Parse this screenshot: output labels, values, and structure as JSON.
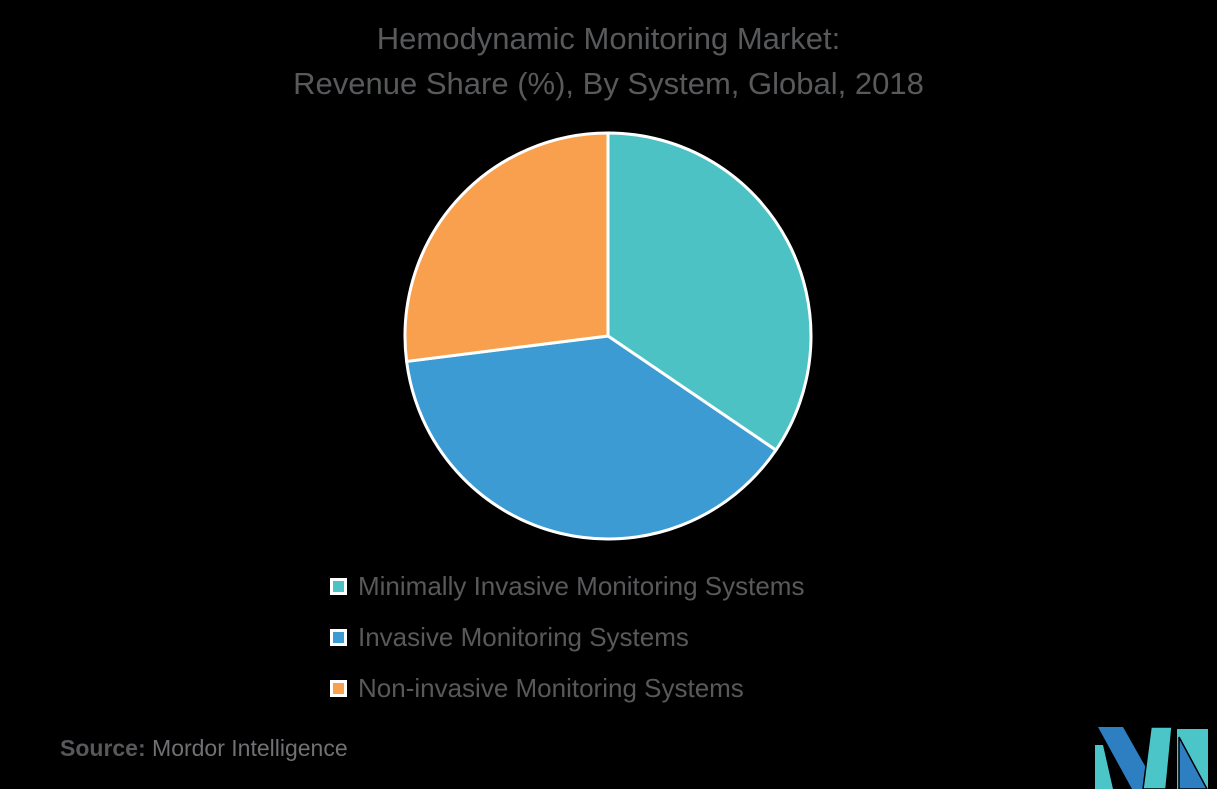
{
  "background_color": "#000000",
  "text_color": "#58595B",
  "header": {
    "line1": "Hemodynamic Monitoring Market:",
    "line2": "Revenue Share (%), By System, Global, 2018"
  },
  "chart_data": {
    "type": "pie",
    "title": "Hemodynamic Monitoring Market: Revenue Share (%), By System, Global, 2018",
    "slices": [
      {
        "label": "Minimally Invasive Monitoring Systems",
        "value": 34.5,
        "color": "#4DC2C4"
      },
      {
        "label": "Invasive Monitoring Systems",
        "value": 38.5,
        "color": "#3C9BD3"
      },
      {
        "label": "Non-invasive Monitoring Systems",
        "value": 27.0,
        "color": "#F9A04E"
      }
    ],
    "start_angle_deg": 0,
    "direction": "clockwise",
    "slice_border_color": "#FFFFFF",
    "labels_shown": false,
    "legend_position": "bottom"
  },
  "source": {
    "prefix": "Source:",
    "name": "Mordor Intelligence"
  },
  "logo": {
    "name": "Mordor Intelligence logo",
    "blue": "#2E7FC2",
    "teal": "#4CC5C9"
  }
}
